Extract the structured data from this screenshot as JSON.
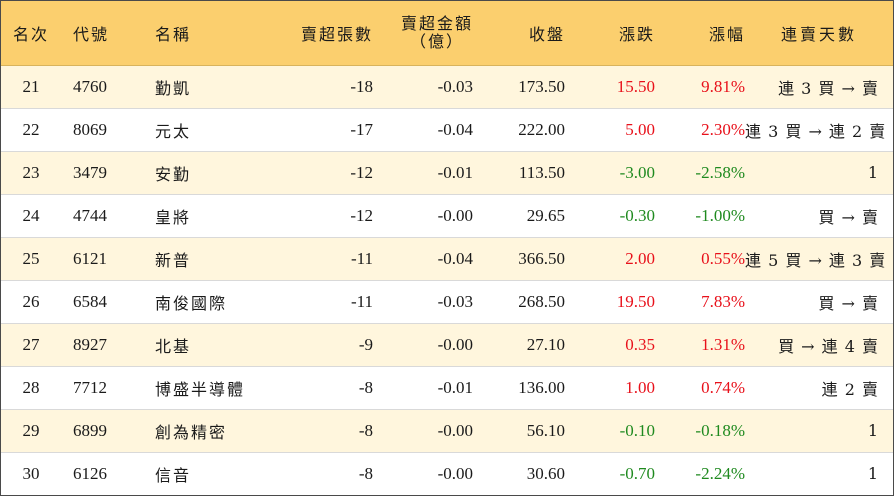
{
  "headers": {
    "rank": "名次",
    "code": "代號",
    "name": "名稱",
    "net_sell_sheets": "賣超張數",
    "net_sell_amount_line1": "賣超金額",
    "net_sell_amount_line2": "（億）",
    "close": "收盤",
    "change": "漲跌",
    "change_pct": "漲幅",
    "streak": "連賣天數"
  },
  "colors": {
    "header_bg": "#fbcf6e",
    "odd_row_bg": "#fff6dd",
    "up": "#e8101a",
    "down": "#1f8a1f"
  },
  "rows": [
    {
      "rank": "21",
      "code": "4760",
      "name": "勤凱",
      "sheets": "-18",
      "amount": "-0.03",
      "close": "173.50",
      "change": "15.50",
      "pct": "9.81%",
      "direction": "up",
      "streak": "連 3 買 → 賣"
    },
    {
      "rank": "22",
      "code": "8069",
      "name": "元太",
      "sheets": "-17",
      "amount": "-0.04",
      "close": "222.00",
      "change": "5.00",
      "pct": "2.30%",
      "direction": "up",
      "streak": "連 3 買 → 連 2 賣"
    },
    {
      "rank": "23",
      "code": "3479",
      "name": "安勤",
      "sheets": "-12",
      "amount": "-0.01",
      "close": "113.50",
      "change": "-3.00",
      "pct": "-2.58%",
      "direction": "down",
      "streak": "1"
    },
    {
      "rank": "24",
      "code": "4744",
      "name": "皇將",
      "sheets": "-12",
      "amount": "-0.00",
      "close": "29.65",
      "change": "-0.30",
      "pct": "-1.00%",
      "direction": "down",
      "streak": "買 → 賣"
    },
    {
      "rank": "25",
      "code": "6121",
      "name": "新普",
      "sheets": "-11",
      "amount": "-0.04",
      "close": "366.50",
      "change": "2.00",
      "pct": "0.55%",
      "direction": "up",
      "streak": "連 5 買 → 連 3 賣"
    },
    {
      "rank": "26",
      "code": "6584",
      "name": "南俊國際",
      "sheets": "-11",
      "amount": "-0.03",
      "close": "268.50",
      "change": "19.50",
      "pct": "7.83%",
      "direction": "up",
      "streak": "買 → 賣"
    },
    {
      "rank": "27",
      "code": "8927",
      "name": "北基",
      "sheets": "-9",
      "amount": "-0.00",
      "close": "27.10",
      "change": "0.35",
      "pct": "1.31%",
      "direction": "up",
      "streak": "買 → 連 4 賣"
    },
    {
      "rank": "28",
      "code": "7712",
      "name": "博盛半導體",
      "sheets": "-8",
      "amount": "-0.01",
      "close": "136.00",
      "change": "1.00",
      "pct": "0.74%",
      "direction": "up",
      "streak": "連 2 賣"
    },
    {
      "rank": "29",
      "code": "6899",
      "name": "創為精密",
      "sheets": "-8",
      "amount": "-0.00",
      "close": "56.10",
      "change": "-0.10",
      "pct": "-0.18%",
      "direction": "down",
      "streak": "1"
    },
    {
      "rank": "30",
      "code": "6126",
      "name": "信音",
      "sheets": "-8",
      "amount": "-0.00",
      "close": "30.60",
      "change": "-0.70",
      "pct": "-2.24%",
      "direction": "down",
      "streak": "1"
    }
  ]
}
